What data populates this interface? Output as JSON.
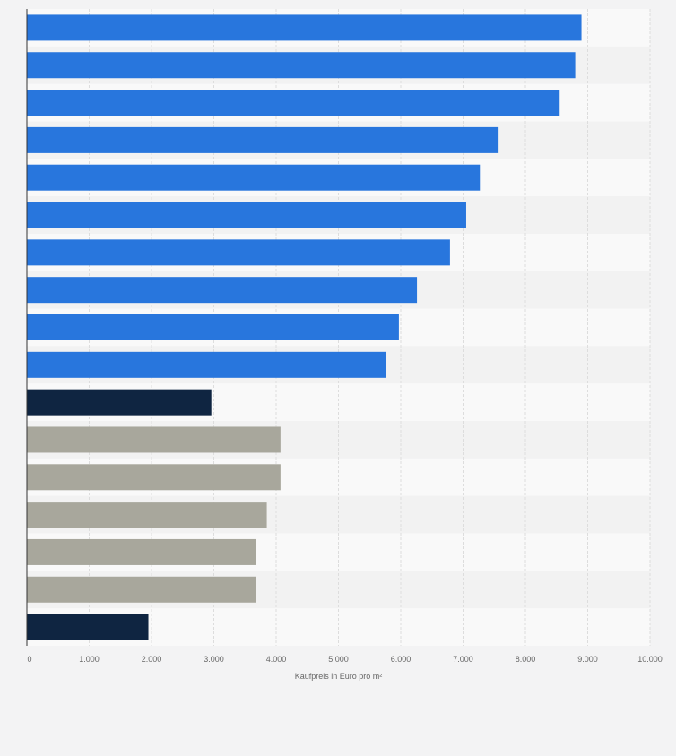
{
  "chart_data": {
    "type": "bar",
    "orientation": "horizontal",
    "title": "",
    "categories": [
      "",
      "",
      "",
      "",
      "",
      "",
      "",
      "",
      "",
      "",
      "",
      "",
      "",
      "",
      "",
      "",
      ""
    ],
    "values": [
      8900,
      8800,
      8550,
      7570,
      7270,
      7050,
      6790,
      6260,
      5970,
      5760,
      2960,
      4070,
      4070,
      3850,
      3680,
      3670,
      1950
    ],
    "bar_colors": [
      "#2876dd",
      "#2876dd",
      "#2876dd",
      "#2876dd",
      "#2876dd",
      "#2876dd",
      "#2876dd",
      "#2876dd",
      "#2876dd",
      "#2876dd",
      "#0f2541",
      "#a8a79c",
      "#a8a79c",
      "#a8a79c",
      "#a8a79c",
      "#a8a79c",
      "#0f2541"
    ],
    "xlabel": "Kaufpreis in Euro pro m²",
    "ylabel": "",
    "xlim": [
      0,
      10000
    ],
    "x_ticks": [
      0,
      1000,
      2000,
      3000,
      4000,
      5000,
      6000,
      7000,
      8000,
      9000,
      10000
    ],
    "x_tick_labels": [
      "0",
      "1.000",
      "2.000",
      "3.000",
      "4.000",
      "5.000",
      "6.000",
      "7.000",
      "8.000",
      "9.000",
      "10.000"
    ],
    "grid": true,
    "legend": "none"
  },
  "colors": {
    "page_background": "#f3f3f4",
    "band_light": "#f9f9f9",
    "band_dark": "#f2f2f2",
    "gridline": "#dddddd",
    "axis": "#333333",
    "tick_text": "#666666"
  }
}
